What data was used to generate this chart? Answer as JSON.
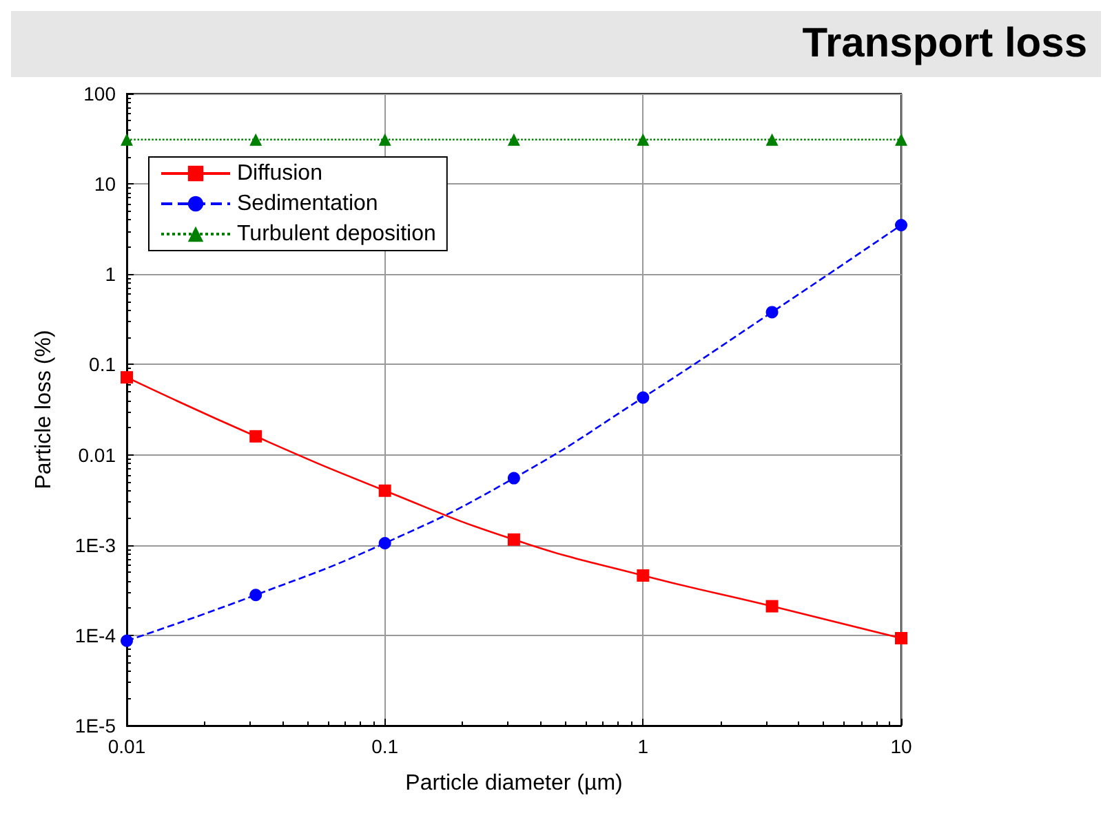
{
  "chart_data": {
    "type": "line",
    "title": "Transport loss",
    "xlabel": "Particle diameter (µm)",
    "ylabel": "Particle loss (%)",
    "x": [
      0.01,
      0.0316,
      0.1,
      0.316,
      1,
      3.16,
      10
    ],
    "series": [
      {
        "name": "Diffusion",
        "color": "#ff0000",
        "values": [
          0.072,
          0.016,
          0.004,
          0.00115,
          0.00046,
          0.00021,
          9.3e-05
        ],
        "marker": "square",
        "line_style": "solid"
      },
      {
        "name": "Sedimentation",
        "color": "#0000ff",
        "values": [
          8.7e-05,
          0.00028,
          0.00105,
          0.0055,
          0.043,
          0.38,
          3.5
        ],
        "marker": "circle",
        "line_style": "dashed"
      },
      {
        "name": "Turbulent deposition",
        "color": "#008000",
        "values": [
          31,
          31,
          31,
          31,
          31,
          31,
          31
        ],
        "marker": "triangle",
        "line_style": "dotted"
      }
    ],
    "log": "xy",
    "xlim": [
      0.01,
      10
    ],
    "ylim": [
      1e-05,
      100
    ],
    "xticks": [
      0.01,
      0.1,
      1,
      10
    ],
    "yticks": [
      100,
      10,
      1,
      0.1,
      0.01,
      {
        "value": 0.001,
        "label": "1E-3"
      },
      {
        "value": 0.0001,
        "label": "1E-4"
      },
      {
        "value": 1e-05,
        "label": "1E-5"
      }
    ],
    "grid": true,
    "legend": "top left"
  }
}
